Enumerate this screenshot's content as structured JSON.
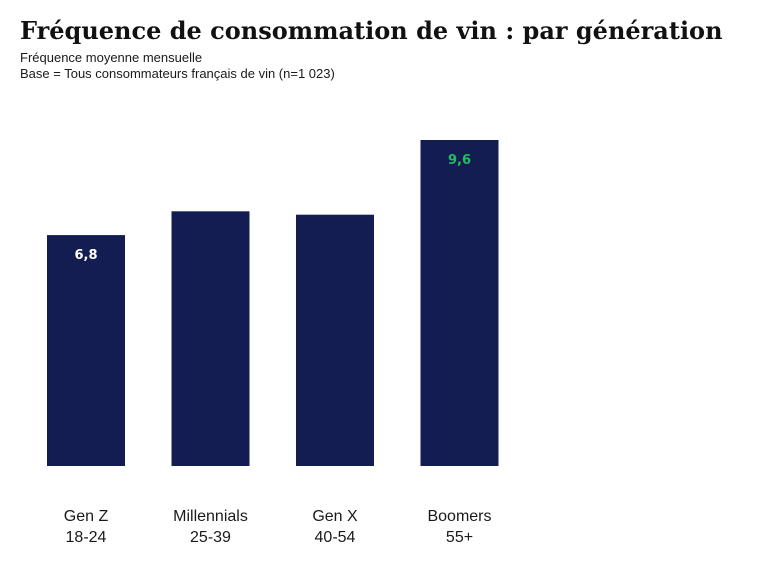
{
  "header": {
    "title": "Fréquence de consommation de vin : par génération",
    "subtitle1": "Fréquence moyenne mensuelle",
    "subtitle2": "Base = Tous consommateurs français de vin (n=1 023)"
  },
  "colors": {
    "bar": "#141d52",
    "label_default": "#ffffff",
    "label_highlight": "#1fbf5f"
  },
  "chart_data": {
    "type": "bar",
    "title": "Fréquence de consommation de vin : par génération",
    "categories": [
      {
        "line1": "Gen Z",
        "line2": "18-24"
      },
      {
        "line1": "Millennials",
        "line2": "25-39"
      },
      {
        "line1": "Gen X",
        "line2": "40-54"
      },
      {
        "line1": "Boomers",
        "line2": "55+"
      }
    ],
    "values": [
      6.8,
      7.5,
      7.4,
      9.6
    ],
    "data_labels": [
      "6,8",
      "",
      "",
      "9,6"
    ],
    "highlight_index": 3,
    "ylim": [
      0,
      9.6
    ],
    "grid": false,
    "legend": "none"
  }
}
